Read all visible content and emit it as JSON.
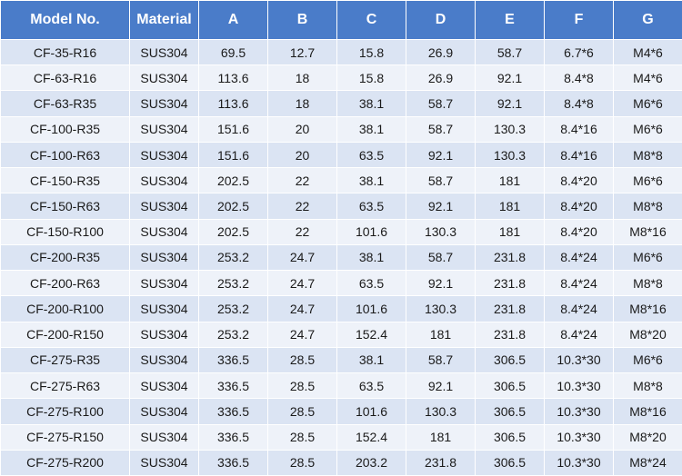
{
  "table": {
    "columns": [
      "Model No.",
      "Material",
      "A",
      "B",
      "C",
      "D",
      "E",
      "F",
      "G"
    ],
    "rows": [
      [
        "CF-35-R16",
        "SUS304",
        "69.5",
        "12.7",
        "15.8",
        "26.9",
        "58.7",
        "6.7*6",
        "M4*6"
      ],
      [
        "CF-63-R16",
        "SUS304",
        "113.6",
        "18",
        "15.8",
        "26.9",
        "92.1",
        "8.4*8",
        "M4*6"
      ],
      [
        "CF-63-R35",
        "SUS304",
        "113.6",
        "18",
        "38.1",
        "58.7",
        "92.1",
        "8.4*8",
        "M6*6"
      ],
      [
        "CF-100-R35",
        "SUS304",
        "151.6",
        "20",
        "38.1",
        "58.7",
        "130.3",
        "8.4*16",
        "M6*6"
      ],
      [
        "CF-100-R63",
        "SUS304",
        "151.6",
        "20",
        "63.5",
        "92.1",
        "130.3",
        "8.4*16",
        "M8*8"
      ],
      [
        "CF-150-R35",
        "SUS304",
        "202.5",
        "22",
        "38.1",
        "58.7",
        "181",
        "8.4*20",
        "M6*6"
      ],
      [
        "CF-150-R63",
        "SUS304",
        "202.5",
        "22",
        "63.5",
        "92.1",
        "181",
        "8.4*20",
        "M8*8"
      ],
      [
        "CF-150-R100",
        "SUS304",
        "202.5",
        "22",
        "101.6",
        "130.3",
        "181",
        "8.4*20",
        "M8*16"
      ],
      [
        "CF-200-R35",
        "SUS304",
        "253.2",
        "24.7",
        "38.1",
        "58.7",
        "231.8",
        "8.4*24",
        "M6*6"
      ],
      [
        "CF-200-R63",
        "SUS304",
        "253.2",
        "24.7",
        "63.5",
        "92.1",
        "231.8",
        "8.4*24",
        "M8*8"
      ],
      [
        "CF-200-R100",
        "SUS304",
        "253.2",
        "24.7",
        "101.6",
        "130.3",
        "231.8",
        "8.4*24",
        "M8*16"
      ],
      [
        "CF-200-R150",
        "SUS304",
        "253.2",
        "24.7",
        "152.4",
        "181",
        "231.8",
        "8.4*24",
        "M8*20"
      ],
      [
        "CF-275-R35",
        "SUS304",
        "336.5",
        "28.5",
        "38.1",
        "58.7",
        "306.5",
        "10.3*30",
        "M6*6"
      ],
      [
        "CF-275-R63",
        "SUS304",
        "336.5",
        "28.5",
        "63.5",
        "92.1",
        "306.5",
        "10.3*30",
        "M8*8"
      ],
      [
        "CF-275-R100",
        "SUS304",
        "336.5",
        "28.5",
        "101.6",
        "130.3",
        "306.5",
        "10.3*30",
        "M8*16"
      ],
      [
        "CF-275-R150",
        "SUS304",
        "336.5",
        "28.5",
        "152.4",
        "181",
        "306.5",
        "10.3*30",
        "M8*20"
      ],
      [
        "CF-275-R200",
        "SUS304",
        "336.5",
        "28.5",
        "203.2",
        "231.8",
        "306.5",
        "10.3*30",
        "M8*24"
      ]
    ]
  },
  "colors": {
    "header_bg": "#4a7cc9",
    "header_text": "#ffffff",
    "row_odd_bg": "#dbe4f3",
    "row_even_bg": "#eef2f9"
  }
}
